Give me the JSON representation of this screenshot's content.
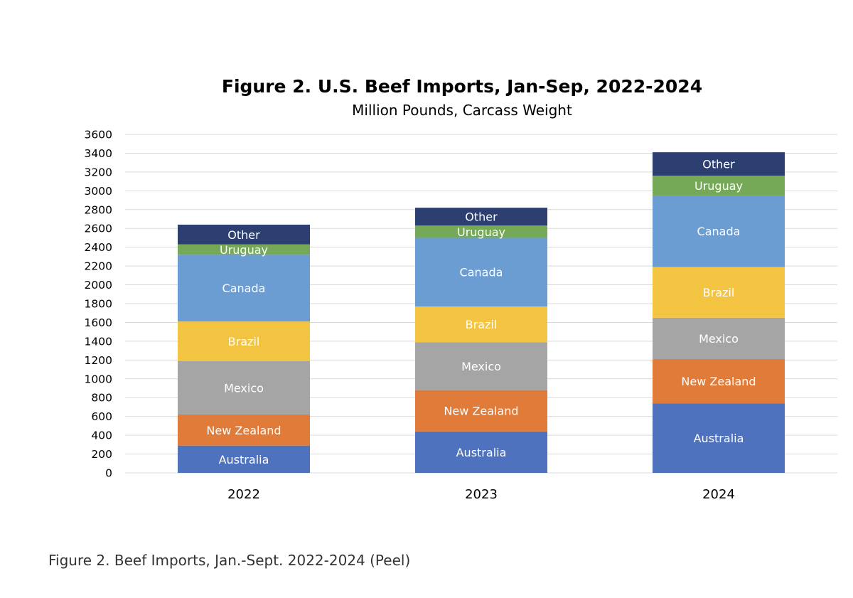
{
  "caption": "Figure 2. Beef Imports, Jan.-Sept. 2022-2024 (Peel)",
  "chart_data": {
    "type": "bar",
    "stacked": true,
    "title": "Figure 2. U.S. Beef Imports, Jan-Sep,  2022-2024",
    "subtitle": "Million Pounds, Carcass Weight",
    "xlabel": "",
    "ylabel": "",
    "ylim": [
      0,
      3600
    ],
    "yticks": [
      0,
      200,
      400,
      600,
      800,
      1000,
      1200,
      1400,
      1600,
      1800,
      2000,
      2200,
      2400,
      2600,
      2800,
      3000,
      3200,
      3400,
      3600
    ],
    "grid": true,
    "legend": "none",
    "categories": [
      "2022",
      "2023",
      "2024"
    ],
    "series": [
      {
        "name": "Australia",
        "color": "#4e72be",
        "values": [
          290,
          440,
          740
        ]
      },
      {
        "name": "New Zealand",
        "color": "#e07b39",
        "values": [
          330,
          440,
          470
        ]
      },
      {
        "name": "Mexico",
        "color": "#a5a5a5",
        "values": [
          570,
          510,
          440
        ]
      },
      {
        "name": "Brazil",
        "color": "#f3c342",
        "values": [
          420,
          380,
          540
        ]
      },
      {
        "name": "Canada",
        "color": "#6b9dd3",
        "values": [
          710,
          730,
          760
        ]
      },
      {
        "name": "Uruguay",
        "color": "#75a958",
        "values": [
          110,
          130,
          210
        ]
      },
      {
        "name": "Other",
        "color": "#2c3f70",
        "values": [
          210,
          190,
          250
        ]
      }
    ]
  }
}
